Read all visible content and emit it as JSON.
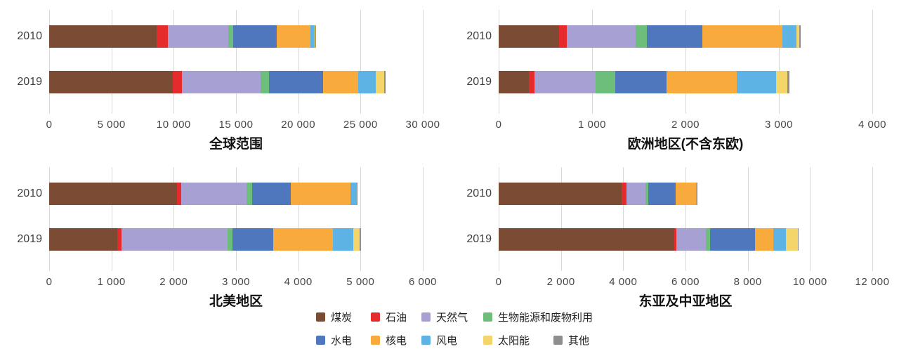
{
  "colors": {
    "background": "#ffffff",
    "gridline": "#d8d8d8",
    "axis_text": "#474747",
    "title_text": "#111111"
  },
  "series": [
    {
      "key": "coal",
      "name": "煤炭",
      "color": "#7C4B33"
    },
    {
      "key": "oil",
      "name": "石油",
      "color": "#E52B2C"
    },
    {
      "key": "natural-gas",
      "name": "天然气",
      "color": "#A7A0D3"
    },
    {
      "key": "bioenergy-waste",
      "name": "生物能源和废物利用",
      "color": "#6DBE7B"
    },
    {
      "key": "hydro",
      "name": "水电",
      "color": "#4E77BE"
    },
    {
      "key": "nuclear",
      "name": "核电",
      "color": "#F8AB3C"
    },
    {
      "key": "wind",
      "name": "风电",
      "color": "#5CB3E4"
    },
    {
      "key": "solar",
      "name": "太阳能",
      "color": "#F3D56A"
    },
    {
      "key": "other",
      "name": "其他",
      "color": "#8E8E8E"
    }
  ],
  "legend": {
    "rows": [
      [
        "煤炭",
        "石油",
        "天然气",
        "生物能源和废物利用"
      ],
      [
        "水电",
        "核电",
        "风电",
        "太阳能",
        "其他"
      ]
    ]
  },
  "chart_data": [
    {
      "type": "bar",
      "stacked": true,
      "orientation": "horizontal",
      "title": "全球范围",
      "key": "global",
      "categories": [
        "2010",
        "2019"
      ],
      "xlim": [
        0,
        30000
      ],
      "xticks": [
        "0",
        "5 000",
        "10 000",
        "15 000",
        "20 000",
        "25 000",
        "30 000"
      ],
      "grid": true,
      "series": [
        {
          "name": "煤炭",
          "values": [
            8600,
            9900
          ]
        },
        {
          "name": "石油",
          "values": [
            950,
            750
          ]
        },
        {
          "name": "天然气",
          "values": [
            4850,
            6350
          ]
        },
        {
          "name": "生物能源和废物利用",
          "values": [
            400,
            650
          ]
        },
        {
          "name": "水电",
          "values": [
            3450,
            4350
          ]
        },
        {
          "name": "核电",
          "values": [
            2750,
            2800
          ]
        },
        {
          "name": "风电",
          "values": [
            340,
            1400
          ]
        },
        {
          "name": "太阳能",
          "values": [
            30,
            700
          ]
        },
        {
          "name": "其他",
          "values": [
            60,
            100
          ]
        }
      ]
    },
    {
      "type": "bar",
      "stacked": true,
      "orientation": "horizontal",
      "title": "欧洲地区(不含东欧)",
      "key": "europe-excl-eastern",
      "categories": [
        "2010",
        "2019"
      ],
      "xlim": [
        0,
        4000
      ],
      "xticks": [
        "0",
        "1 000",
        "2 000",
        "3 000",
        "4 000"
      ],
      "grid": true,
      "series": [
        {
          "name": "煤炭",
          "values": [
            650,
            320
          ]
        },
        {
          "name": "石油",
          "values": [
            80,
            60
          ]
        },
        {
          "name": "天然气",
          "values": [
            740,
            660
          ]
        },
        {
          "name": "生物能源和废物利用",
          "values": [
            120,
            210
          ]
        },
        {
          "name": "水电",
          "values": [
            590,
            550
          ]
        },
        {
          "name": "核电",
          "values": [
            860,
            750
          ]
        },
        {
          "name": "风电",
          "values": [
            150,
            420
          ]
        },
        {
          "name": "太阳能",
          "values": [
            25,
            120
          ]
        },
        {
          "name": "其他",
          "values": [
            20,
            25
          ]
        }
      ]
    },
    {
      "type": "bar",
      "stacked": true,
      "orientation": "horizontal",
      "title": "北美地区",
      "key": "north-america",
      "categories": [
        "2010",
        "2019"
      ],
      "xlim": [
        0,
        6000
      ],
      "xticks": [
        "0",
        "1 000",
        "2 000",
        "3 000",
        "4 000",
        "5 000",
        "6 000"
      ],
      "grid": true,
      "series": [
        {
          "name": "煤炭",
          "values": [
            2050,
            1095
          ]
        },
        {
          "name": "石油",
          "values": [
            75,
            65
          ]
        },
        {
          "name": "天然气",
          "values": [
            1040,
            1700
          ]
        },
        {
          "name": "生物能源和废物利用",
          "values": [
            90,
            85
          ]
        },
        {
          "name": "水电",
          "values": [
            630,
            655
          ]
        },
        {
          "name": "核电",
          "values": [
            950,
            955
          ]
        },
        {
          "name": "风电",
          "values": [
            100,
            325
          ]
        },
        {
          "name": "太阳能",
          "values": [
            5,
            110
          ]
        },
        {
          "name": "其他",
          "values": [
            10,
            15
          ]
        }
      ]
    },
    {
      "type": "bar",
      "stacked": true,
      "orientation": "horizontal",
      "title": "东亚及中亚地区",
      "key": "east-central-asia",
      "categories": [
        "2010",
        "2019"
      ],
      "xlim": [
        0,
        12000
      ],
      "xticks": [
        "0",
        "2 000",
        "4 000",
        "6 000",
        "8 000",
        "10 000",
        "12 000"
      ],
      "grid": true,
      "series": [
        {
          "name": "煤炭",
          "values": [
            3950,
            5645
          ]
        },
        {
          "name": "石油",
          "values": [
            165,
            70
          ]
        },
        {
          "name": "天然气",
          "values": [
            590,
            945
          ]
        },
        {
          "name": "生物能源和废物利用",
          "values": [
            95,
            120
          ]
        },
        {
          "name": "水电",
          "values": [
            890,
            1460
          ]
        },
        {
          "name": "核电",
          "values": [
            640,
            590
          ]
        },
        {
          "name": "风电",
          "values": [
            25,
            395
          ]
        },
        {
          "name": "太阳能",
          "values": [
            5,
            395
          ]
        },
        {
          "name": "其他",
          "values": [
            5,
            10
          ]
        }
      ]
    }
  ]
}
